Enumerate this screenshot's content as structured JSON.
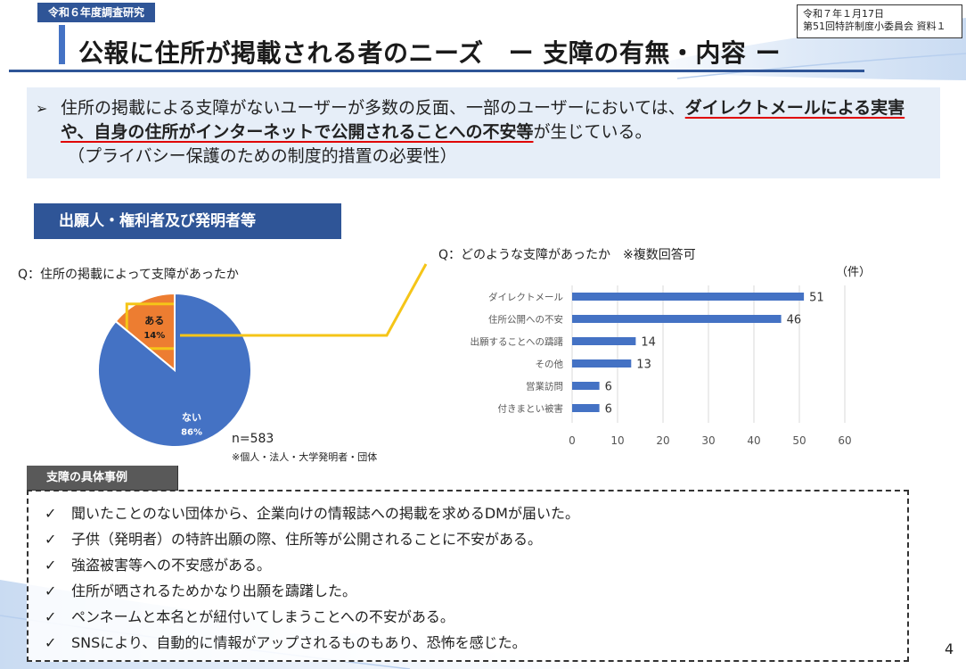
{
  "header": {
    "research_tag": "令和６年度調査研究",
    "doc_date": "令和７年１月17日",
    "doc_ref": "第51回特許制度小委員会 資料１",
    "title": "公報に住所が掲載される者のニーズ",
    "title_sub": "ー 支障の有無・内容 ー"
  },
  "summary": {
    "arrow_icon": "➢",
    "part1": "住所の掲載による支障がないユーザーが多数の反面、一部のユーザーにおいては、",
    "emphasis": "ダイレクトメールによる実害や、自身の住所がインターネットで公開されることへの不安等",
    "part2": "が生じている。",
    "paren": "（プライバシー保護のための制度的措置の必要性）"
  },
  "section": {
    "heading": "出願人・権利者及び発明者等"
  },
  "pie": {
    "question": "Q：住所の掲載によって支障があったか",
    "n_label": "n=583",
    "note": "※個人・法人・大学発明者・団体"
  },
  "bar": {
    "question": "Q：どのような支障があったか　※複数回答可",
    "unit": "（件）"
  },
  "chart_data": [
    {
      "type": "pie",
      "slices": [
        {
          "label": "ある",
          "pct_label": "14%",
          "value": 14,
          "color": "#ed7d31"
        },
        {
          "label": "ない",
          "pct_label": "86%",
          "value": 86,
          "color": "#4472c4"
        }
      ]
    },
    {
      "type": "bar",
      "orientation": "horizontal",
      "categories": [
        "ダイレクトメール",
        "住所公開への不安",
        "出願することへの躊躇",
        "その他",
        "営業訪問",
        "付きまとい被害"
      ],
      "values": [
        51,
        46,
        14,
        13,
        6,
        6
      ],
      "value_labels": [
        "51",
        "46",
        "14",
        "13",
        "6",
        "6"
      ],
      "xlim": [
        0,
        60
      ],
      "xticks": [
        "0",
        "10",
        "20",
        "30",
        "40",
        "50",
        "60"
      ],
      "bar_color": "#4472c4",
      "grid": true
    }
  ],
  "examples": {
    "tag": "支障の具体事例",
    "check_icon": "✓",
    "items": [
      "聞いたことのない団体から、企業向けの情報誌への掲載を求めるDMが届いた。",
      "子供（発明者）の特許出願の際、住所等が公開されることに不安がある。",
      "強盗被害等への不安感がある。",
      "住所が晒されるためかなり出願を躊躇した。",
      "ペンネームと本名とが紐付いてしまうことへの不安がある。",
      "SNSにより、自動的に情報がアップされるものもあり、恐怖を感じた。"
    ]
  },
  "page_number": "4",
  "colors": {
    "accent": "#2f5597",
    "highlight": "#f5c518",
    "underline": "#e00000"
  }
}
